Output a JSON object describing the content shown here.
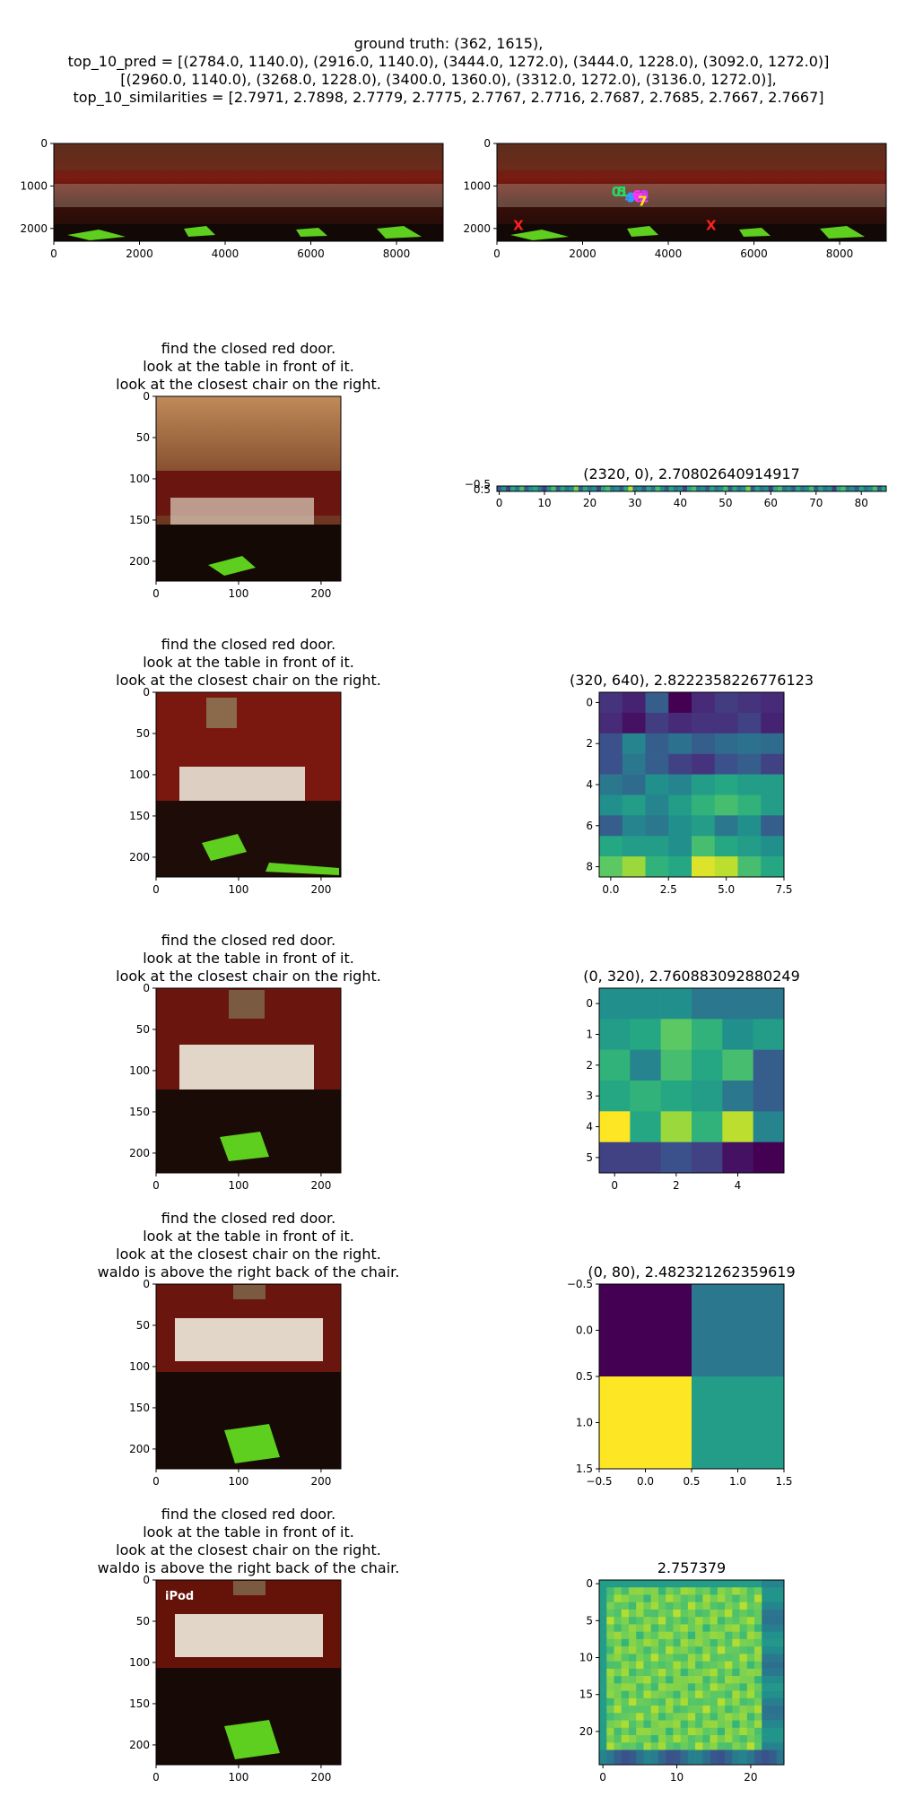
{
  "header": {
    "lines": [
      "ground truth: (362, 1615),",
      "top_10_pred = [(2784.0, 1140.0), (2916.0, 1140.0), (3444.0, 1272.0), (3444.0, 1228.0), (3092.0, 1272.0)]",
      "[(2960.0, 1140.0), (3268.0, 1228.0), (3400.0, 1360.0), (3312.0, 1272.0), (3136.0, 1272.0)],",
      "top_10_similarities = [2.7971, 2.7898, 2.7779, 2.7775, 2.7767, 2.7716, 2.7687, 2.7685, 2.7667, 2.7667]"
    ]
  },
  "chart_data": [
    {
      "type": "image",
      "panel": "panorama-left",
      "xlim": [
        0,
        9088
      ],
      "ylim": [
        2300,
        0
      ],
      "xticks": [
        0,
        2000,
        4000,
        6000,
        8000
      ],
      "yticks": [
        0,
        1000,
        2000
      ],
      "content": "equirectangular panorama of red dining room"
    },
    {
      "type": "image",
      "panel": "panorama-right",
      "xlim": [
        0,
        9088
      ],
      "ylim": [
        2300,
        0
      ],
      "xticks": [
        0,
        2000,
        4000,
        6000,
        8000
      ],
      "yticks": [
        0,
        1000,
        2000
      ],
      "markers": [
        {
          "label": "X",
          "x": 500,
          "y": 1930,
          "color": "#ff2020"
        },
        {
          "label": "X",
          "x": 5000,
          "y": 1930,
          "color": "#ff2020"
        },
        {
          "label": "0",
          "x": 2784,
          "y": 1140,
          "color": "#22dd66"
        },
        {
          "label": "5",
          "x": 2916,
          "y": 1140,
          "color": "#22dd66"
        },
        {
          "label": "1",
          "x": 2960,
          "y": 1140,
          "color": "#22dd66"
        },
        {
          "label": "4",
          "x": 3092,
          "y": 1272,
          "color": "#3399ff"
        },
        {
          "label": "9",
          "x": 3136,
          "y": 1272,
          "color": "#3399ff"
        },
        {
          "label": "6",
          "x": 3268,
          "y": 1228,
          "color": "#ff33ff"
        },
        {
          "label": "8",
          "x": 3312,
          "y": 1272,
          "color": "#ff33ff"
        },
        {
          "label": "2",
          "x": 3444,
          "y": 1272,
          "color": "#ff33ff"
        },
        {
          "label": "3",
          "x": 3444,
          "y": 1228,
          "color": "#cc33ff"
        },
        {
          "label": "7",
          "x": 3400,
          "y": 1360,
          "color": "#ffee00"
        }
      ]
    },
    {
      "type": "image",
      "panel": "view-1",
      "title": [
        "find the closed red door.",
        "look at the table in front of it.",
        "look at the closest chair on the right."
      ],
      "xlim": [
        0,
        224
      ],
      "ylim": [
        224,
        0
      ],
      "xticks": [
        0,
        100,
        200
      ],
      "yticks": [
        0,
        50,
        100,
        150,
        200
      ]
    },
    {
      "type": "heatmap",
      "panel": "heat-1",
      "title": "(2320, 0), 2.70802640914917",
      "rows": 1,
      "cols": 86,
      "xticks": [
        0,
        10,
        20,
        30,
        40,
        50,
        60,
        70,
        80
      ],
      "yticks": [
        "−0.5",
        "0.5"
      ],
      "values": [
        [
          0.3,
          0.5,
          0.2,
          0.6,
          0.4,
          0.7,
          0.3,
          0.5,
          0.6,
          0.4,
          0.2,
          0.5,
          0.7,
          0.3,
          0.6,
          0.4,
          0.5,
          0.8,
          0.3,
          0.6,
          0.4,
          0.5,
          0.2,
          0.6,
          0.7,
          0.4,
          0.5,
          0.3,
          0.6,
          0.9,
          0.4,
          0.5,
          0.3,
          0.6,
          0.4,
          0.7,
          0.5,
          0.3,
          0.6,
          0.4,
          0.5,
          0.2,
          0.6,
          0.7,
          0.4,
          0.5,
          0.3,
          0.6,
          0.4,
          0.5,
          0.7,
          0.3,
          0.6,
          0.4,
          0.5,
          0.8,
          0.3,
          0.6,
          0.4,
          0.5,
          0.2,
          0.6,
          0.7,
          0.4,
          0.5,
          0.3,
          0.6,
          0.4,
          0.5,
          0.7,
          0.3,
          0.6,
          0.4,
          0.5,
          0.2,
          0.6,
          0.7,
          0.4,
          0.5,
          0.3,
          0.6,
          0.4,
          0.5,
          0.7,
          0.3,
          0.6
        ]
      ]
    },
    {
      "type": "image",
      "panel": "view-2",
      "title": [
        "find the closed red door.",
        "look at the table in front of it.",
        "look at the closest chair on the right."
      ],
      "xlim": [
        0,
        224
      ],
      "ylim": [
        224,
        0
      ],
      "xticks": [
        0,
        100,
        200
      ],
      "yticks": [
        0,
        50,
        100,
        150,
        200
      ]
    },
    {
      "type": "heatmap",
      "panel": "heat-2",
      "title": "(320, 640), 2.8222358226776123",
      "rows": 9,
      "cols": 8,
      "xticks": [
        "0.0",
        "2.5",
        "5.0",
        "7.5"
      ],
      "xtick_vals": [
        0,
        2.5,
        5,
        7.5
      ],
      "yticks": [
        "0",
        "2",
        "4",
        "6",
        "8"
      ],
      "ytick_vals": [
        0,
        2,
        4,
        6,
        8
      ],
      "values": [
        [
          0.15,
          0.1,
          0.3,
          0.0,
          0.12,
          0.18,
          0.15,
          0.12
        ],
        [
          0.12,
          0.05,
          0.18,
          0.12,
          0.15,
          0.15,
          0.2,
          0.1
        ],
        [
          0.25,
          0.45,
          0.3,
          0.38,
          0.3,
          0.35,
          0.38,
          0.35
        ],
        [
          0.25,
          0.4,
          0.3,
          0.2,
          0.15,
          0.25,
          0.3,
          0.2
        ],
        [
          0.4,
          0.35,
          0.5,
          0.45,
          0.55,
          0.6,
          0.55,
          0.55
        ],
        [
          0.5,
          0.55,
          0.45,
          0.55,
          0.65,
          0.7,
          0.65,
          0.55
        ],
        [
          0.3,
          0.45,
          0.4,
          0.5,
          0.55,
          0.4,
          0.5,
          0.3
        ],
        [
          0.6,
          0.55,
          0.55,
          0.5,
          0.7,
          0.6,
          0.55,
          0.5
        ],
        [
          0.75,
          0.85,
          0.65,
          0.6,
          0.95,
          0.9,
          0.7,
          0.6
        ]
      ]
    },
    {
      "type": "image",
      "panel": "view-3",
      "title": [
        "find the closed red door.",
        "look at the table in front of it.",
        "look at the closest chair on the right."
      ],
      "xlim": [
        0,
        224
      ],
      "ylim": [
        224,
        0
      ],
      "xticks": [
        0,
        100,
        200
      ],
      "yticks": [
        0,
        50,
        100,
        150,
        200
      ]
    },
    {
      "type": "heatmap",
      "panel": "heat-3",
      "title": "(0, 320), 2.760883092880249",
      "rows": 6,
      "cols": 6,
      "xticks": [
        "0",
        "2",
        "4"
      ],
      "xtick_vals": [
        0,
        2,
        4
      ],
      "yticks": [
        "0",
        "1",
        "2",
        "3",
        "4",
        "5"
      ],
      "ytick_vals": [
        0,
        1,
        2,
        3,
        4,
        5
      ],
      "values": [
        [
          0.5,
          0.5,
          0.5,
          0.4,
          0.4,
          0.4
        ],
        [
          0.55,
          0.6,
          0.75,
          0.65,
          0.5,
          0.55
        ],
        [
          0.65,
          0.45,
          0.7,
          0.6,
          0.7,
          0.3
        ],
        [
          0.6,
          0.65,
          0.6,
          0.55,
          0.4,
          0.3
        ],
        [
          1.0,
          0.6,
          0.85,
          0.65,
          0.9,
          0.45
        ],
        [
          0.2,
          0.2,
          0.25,
          0.2,
          0.05,
          0.0
        ]
      ]
    },
    {
      "type": "image",
      "panel": "view-4",
      "title": [
        "find the closed red door.",
        "look at the table in front of it.",
        "look at the closest chair on the right.",
        "waldo is above the right back of the chair."
      ],
      "xlim": [
        0,
        224
      ],
      "ylim": [
        224,
        0
      ],
      "xticks": [
        0,
        100,
        200
      ],
      "yticks": [
        0,
        50,
        100,
        150,
        200
      ]
    },
    {
      "type": "heatmap",
      "panel": "heat-4",
      "title": "(0, 80), 2.482321262359619",
      "rows": 2,
      "cols": 2,
      "xlim": [
        -0.5,
        1.5
      ],
      "ylim": [
        1.5,
        -0.5
      ],
      "xticks": [
        "−0.5",
        "0.0",
        "0.5",
        "1.0",
        "1.5"
      ],
      "xtick_vals": [
        -0.5,
        0,
        0.5,
        1,
        1.5
      ],
      "yticks": [
        "−0.5",
        "0.0",
        "0.5",
        "1.0",
        "1.5"
      ],
      "ytick_vals": [
        -0.5,
        0,
        0.5,
        1,
        1.5
      ],
      "values": [
        [
          0.0,
          0.4
        ],
        [
          1.0,
          0.55
        ]
      ]
    },
    {
      "type": "image",
      "panel": "view-5",
      "title": [
        "find the closed red door.",
        "look at the table in front of it.",
        "look at the closest chair on the right.",
        "waldo is above the right back of the chair."
      ],
      "overlay_text": "iPod",
      "xlim": [
        0,
        224
      ],
      "ylim": [
        224,
        0
      ],
      "xticks": [
        0,
        100,
        200
      ],
      "yticks": [
        0,
        50,
        100,
        150,
        200
      ]
    },
    {
      "type": "heatmap",
      "panel": "heat-5",
      "title": "2.757379",
      "rows": 25,
      "cols": 25,
      "xticks": [
        "0",
        "10",
        "20"
      ],
      "xtick_vals": [
        0,
        10,
        20
      ],
      "yticks": [
        "0",
        "5",
        "10",
        "15",
        "20"
      ],
      "ytick_vals": [
        0,
        5,
        10,
        15,
        20
      ]
    }
  ]
}
